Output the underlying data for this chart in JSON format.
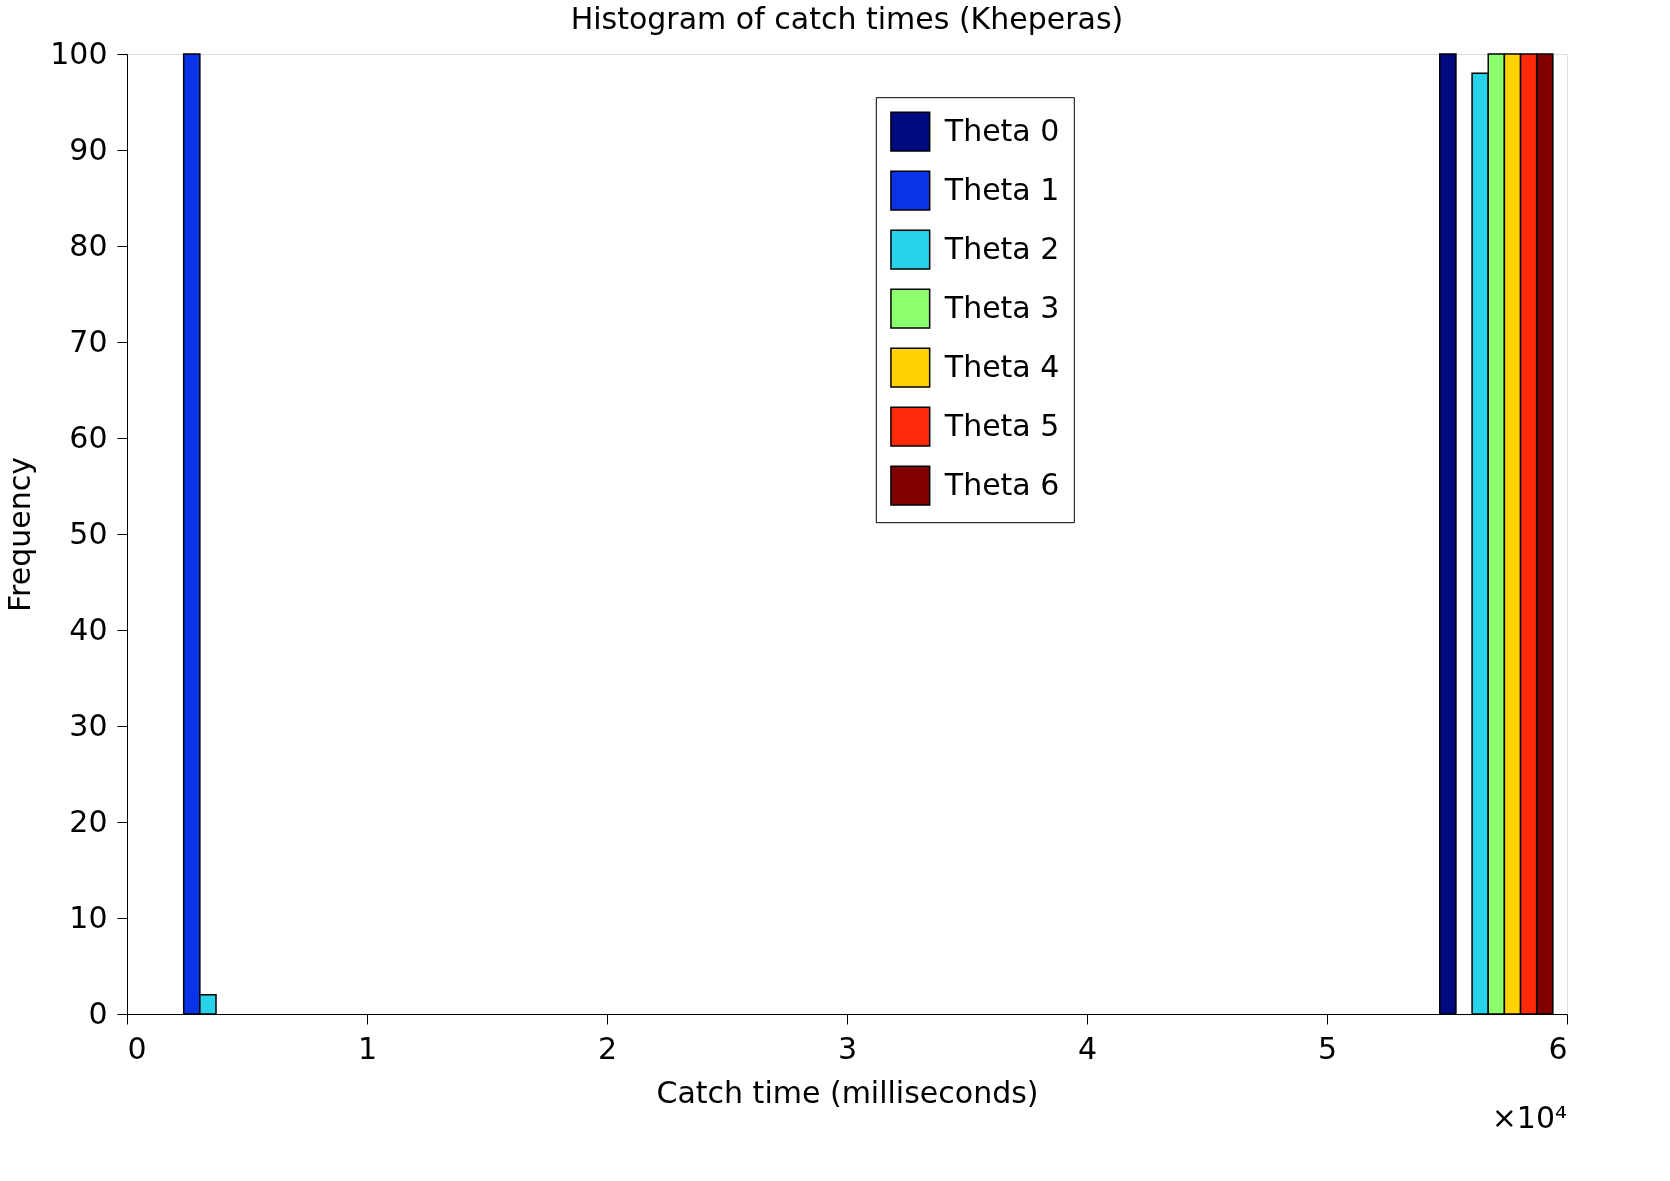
{
  "chart_data": {
    "type": "histogram",
    "title": "Histogram of catch times (Kheperas)",
    "xlabel": "Catch time (milliseconds)",
    "ylabel": "Frequency",
    "bins": [
      0.11,
      0.699,
      1.288,
      1.877,
      2.466,
      3.055,
      3.644,
      4.233,
      4.822,
      5.411,
      6.0
    ],
    "series": [
      {
        "name": "Theta 0",
        "color": "#000a80",
        "values": [
          0,
          0,
          0,
          0,
          0,
          0,
          0,
          0,
          0,
          100
        ]
      },
      {
        "name": "Theta 1",
        "color": "#0a32e6",
        "values": [
          100,
          0,
          0,
          0,
          0,
          0,
          0,
          0,
          0,
          0
        ]
      },
      {
        "name": "Theta 2",
        "color": "#28d2e8",
        "values": [
          2,
          0,
          0,
          0,
          0,
          0,
          0,
          0,
          0,
          98
        ]
      },
      {
        "name": "Theta 3",
        "color": "#8cff6e",
        "values": [
          0,
          0,
          0,
          0,
          0,
          0,
          0,
          0,
          0,
          100
        ]
      },
      {
        "name": "Theta 4",
        "color": "#ffd200",
        "values": [
          0,
          0,
          0,
          0,
          0,
          0,
          0,
          0,
          0,
          100
        ]
      },
      {
        "name": "Theta 5",
        "color": "#ff2a0a",
        "values": [
          0,
          0,
          0,
          0,
          0,
          0,
          0,
          0,
          0,
          100
        ]
      },
      {
        "name": "Theta 6",
        "color": "#800000",
        "values": [
          0,
          0,
          0,
          0,
          0,
          0,
          0,
          0,
          0,
          100
        ]
      }
    ],
    "xlim": [
      0,
      6
    ],
    "ylim": [
      0,
      100
    ],
    "xticks": [
      0,
      1,
      2,
      3,
      4,
      5,
      6
    ],
    "yticks": [
      0,
      10,
      20,
      30,
      40,
      50,
      60,
      70,
      80,
      90,
      100
    ],
    "annotations": [
      "×10⁴"
    ],
    "grid": false,
    "legend": "top right"
  }
}
